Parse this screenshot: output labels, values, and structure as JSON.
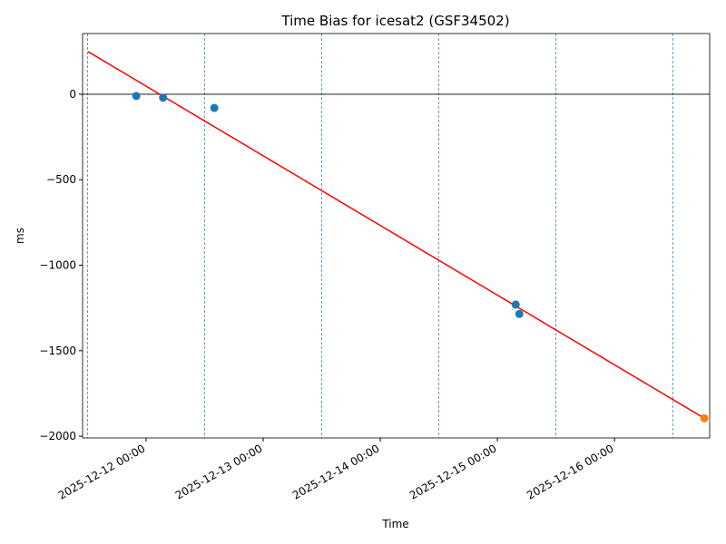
{
  "chart_data": {
    "type": "scatter",
    "title": "Time Bias for icesat2 (GSF34502)",
    "x_label": "Time",
    "y_label": "ms",
    "xlim": [
      "2025-12-11 11:00",
      "2025-12-16 19:30"
    ],
    "xticks": [
      "2025-12-12 00:00",
      "2025-12-13 00:00",
      "2025-12-14 00:00",
      "2025-12-15 00:00",
      "2025-12-16 00:00"
    ],
    "ylim": [
      -2010,
      355
    ],
    "yticks": [
      0,
      {
        "value": -500,
        "label": "−500"
      },
      {
        "value": -1000,
        "label": "−1000"
      },
      {
        "value": -1500,
        "label": "−1500"
      },
      {
        "value": -2000,
        "label": "−2000"
      }
    ],
    "zero_line": 0,
    "vlines": [
      "2025-12-11 12:00",
      "2025-12-12 12:00",
      "2025-12-13 12:00",
      "2025-12-14 12:00",
      "2025-12-15 12:00",
      "2025-12-16 12:00"
    ],
    "vline_color": "#1f77b4",
    "series": [
      {
        "color": "#1f77b4",
        "x": [
          "2025-12-11 22:00",
          "2025-12-12 03:30",
          "2025-12-12 14:00",
          "2025-12-15 03:45",
          "2025-12-15 04:30"
        ],
        "values": [
          -10,
          -20,
          -80,
          -1230,
          -1285
        ]
      },
      {
        "color": "#ff7f0e",
        "x": [
          "2025-12-16 18:25"
        ],
        "values": [
          -1895
        ]
      }
    ],
    "fit": {
      "color": "#ff0000",
      "x": [
        "2025-12-11 12:05",
        "2025-12-16 18:25"
      ],
      "values": [
        250,
        -1895
      ]
    }
  }
}
